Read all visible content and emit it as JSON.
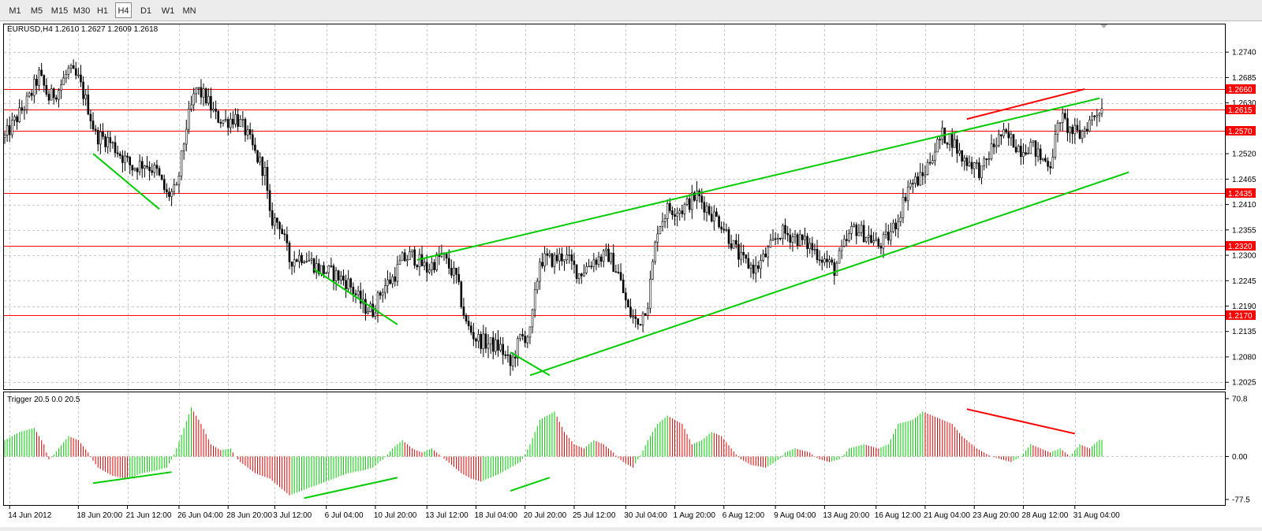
{
  "toolbar": {
    "timeframes": [
      {
        "label": "M1",
        "active": false
      },
      {
        "label": "M5",
        "active": false
      },
      {
        "label": "M15",
        "active": false
      },
      {
        "label": "M30",
        "active": false
      },
      {
        "label": "H1",
        "active": false
      },
      {
        "label": "H4",
        "active": true
      },
      {
        "label": "D1",
        "active": false
      },
      {
        "label": "W1",
        "active": false
      },
      {
        "label": "MN",
        "active": false
      }
    ]
  },
  "colors": {
    "bull_candle": "#ffffff",
    "bear_candle": "#000000",
    "hline": "#ff0000",
    "trendline": "#00cc00",
    "histogram_up": "#00cc00",
    "histogram_down": "#e00000",
    "grid": "#c8c8c8",
    "price_label_bg": "#ff0000"
  },
  "chart_data": [
    {
      "type": "candlestick",
      "title": "EURUSD,H4  1.2610 1.2627 1.2609 1.2618",
      "symbol": "EURUSD",
      "timeframe": "H4",
      "ohlc_last": [
        1.261,
        1.2627,
        1.2609,
        1.2618
      ],
      "ylim": [
        1.201,
        1.28
      ],
      "y_ticks": [
        {
          "value": 1.274,
          "label": "1.2740"
        },
        {
          "value": 1.2685,
          "label": "1.2685"
        },
        {
          "value": 1.263,
          "label": "1.2630"
        },
        {
          "value": 1.252,
          "label": "1.2520"
        },
        {
          "value": 1.2465,
          "label": "1.2465"
        },
        {
          "value": 1.241,
          "label": "1.2410"
        },
        {
          "value": 1.2355,
          "label": "1.2355"
        },
        {
          "value": 1.23,
          "label": "1.2300"
        },
        {
          "value": 1.2245,
          "label": "1.2245"
        },
        {
          "value": 1.219,
          "label": "1.2190"
        },
        {
          "value": 1.2135,
          "label": "1.2135"
        },
        {
          "value": 1.208,
          "label": "1.2080"
        },
        {
          "value": 1.2025,
          "label": "1.2025"
        }
      ],
      "horizontal_levels": [
        {
          "value": 1.266,
          "label": "1.2660"
        },
        {
          "value": 1.2615,
          "label": "1.2615"
        },
        {
          "value": 1.257,
          "label": "1.2570"
        },
        {
          "value": 1.2435,
          "label": "1.2435"
        },
        {
          "value": 1.232,
          "label": "1.2320"
        },
        {
          "value": 1.217,
          "label": "1.2170"
        }
      ],
      "price_path": [
        [
          0,
          1.2555
        ],
        [
          4,
          1.259
        ],
        [
          10,
          1.264
        ],
        [
          14,
          1.269
        ],
        [
          18,
          1.264
        ],
        [
          22,
          1.266
        ],
        [
          26,
          1.27
        ],
        [
          30,
          1.268
        ],
        [
          34,
          1.262
        ],
        [
          37,
          1.256
        ],
        [
          42,
          1.255
        ],
        [
          47,
          1.252
        ],
        [
          52,
          1.249
        ],
        [
          57,
          1.25
        ],
        [
          62,
          1.248
        ],
        [
          66,
          1.243
        ],
        [
          70,
          1.244
        ],
        [
          74,
          1.258
        ],
        [
          78,
          1.266
        ],
        [
          82,
          1.264
        ],
        [
          86,
          1.26
        ],
        [
          90,
          1.259
        ],
        [
          94,
          1.26
        ],
        [
          98,
          1.257
        ],
        [
          102,
          1.252
        ],
        [
          106,
          1.248
        ],
        [
          108,
          1.238
        ],
        [
          112,
          1.237
        ],
        [
          116,
          1.229
        ],
        [
          122,
          1.23
        ],
        [
          128,
          1.227
        ],
        [
          134,
          1.226
        ],
        [
          140,
          1.224
        ],
        [
          146,
          1.219
        ],
        [
          150,
          1.218
        ],
        [
          154,
          1.223
        ],
        [
          158,
          1.225
        ],
        [
          162,
          1.229
        ],
        [
          166,
          1.23
        ],
        [
          172,
          1.227
        ],
        [
          178,
          1.23
        ],
        [
          184,
          1.225
        ],
        [
          188,
          1.215
        ],
        [
          192,
          1.212
        ],
        [
          196,
          1.211
        ],
        [
          202,
          1.21
        ],
        [
          206,
          1.206
        ],
        [
          210,
          1.212
        ],
        [
          214,
          1.213
        ],
        [
          218,
          1.229
        ],
        [
          224,
          1.229
        ],
        [
          228,
          1.23
        ],
        [
          234,
          1.226
        ],
        [
          240,
          1.229
        ],
        [
          246,
          1.23
        ],
        [
          250,
          1.226
        ],
        [
          254,
          1.218
        ],
        [
          258,
          1.215
        ],
        [
          262,
          1.22
        ],
        [
          266,
          1.236
        ],
        [
          270,
          1.24
        ],
        [
          276,
          1.24
        ],
        [
          282,
          1.243
        ],
        [
          288,
          1.239
        ],
        [
          292,
          1.237
        ],
        [
          296,
          1.233
        ],
        [
          300,
          1.229
        ],
        [
          306,
          1.227
        ],
        [
          310,
          1.23
        ],
        [
          316,
          1.235
        ],
        [
          322,
          1.234
        ],
        [
          328,
          1.232
        ],
        [
          334,
          1.229
        ],
        [
          338,
          1.227
        ],
        [
          342,
          1.232
        ],
        [
          346,
          1.236
        ],
        [
          352,
          1.234
        ],
        [
          356,
          1.232
        ],
        [
          360,
          1.234
        ],
        [
          364,
          1.238
        ],
        [
          368,
          1.245
        ],
        [
          374,
          1.247
        ],
        [
          378,
          1.252
        ],
        [
          382,
          1.256
        ],
        [
          386,
          1.255
        ],
        [
          390,
          1.251
        ],
        [
          394,
          1.25
        ],
        [
          398,
          1.248
        ],
        [
          402,
          1.253
        ],
        [
          406,
          1.256
        ],
        [
          410,
          1.255
        ],
        [
          414,
          1.253
        ],
        [
          418,
          1.254
        ],
        [
          422,
          1.251
        ],
        [
          426,
          1.25
        ],
        [
          430,
          1.26
        ],
        [
          434,
          1.257
        ],
        [
          438,
          1.256
        ],
        [
          442,
          1.259
        ],
        [
          446,
          1.2618
        ]
      ],
      "trendlines_green": [
        [
          {
            "bar": 36,
            "price": 1.252
          },
          {
            "bar": 63,
            "price": 1.24
          }
        ],
        [
          {
            "bar": 126,
            "price": 1.227
          },
          {
            "bar": 160,
            "price": 1.215
          }
        ],
        [
          {
            "bar": 168,
            "price": 1.229
          },
          {
            "bar": 446,
            "price": 1.264
          }
        ],
        [
          {
            "bar": 214,
            "price": 1.204
          },
          {
            "bar": 458,
            "price": 1.248
          }
        ],
        [
          {
            "bar": 206,
            "price": 1.209
          },
          {
            "bar": 222,
            "price": 1.204
          }
        ]
      ],
      "trendlines_red": [
        [
          {
            "bar": 392,
            "price": 1.2595
          },
          {
            "bar": 440,
            "price": 1.266
          }
        ]
      ],
      "x_tick_labels": [
        {
          "bar": 2,
          "label": "14 Jun 2012"
        },
        {
          "bar": 30,
          "label": "18 Jun 20:00"
        },
        {
          "bar": 50,
          "label": "21 Jun 12:00"
        },
        {
          "bar": 71,
          "label": "26 Jun 04:00"
        },
        {
          "bar": 91,
          "label": "28 Jun 20:00"
        },
        {
          "bar": 110,
          "label": "3 Jul 12:00"
        },
        {
          "bar": 131,
          "label": "6 Jul 04:00"
        },
        {
          "bar": 151,
          "label": "10 Jul 20:00"
        },
        {
          "bar": 172,
          "label": "13 Jul 12:00"
        },
        {
          "bar": 192,
          "label": "18 Jul 04:00"
        },
        {
          "bar": 212,
          "label": "20 Jul 20:00"
        },
        {
          "bar": 232,
          "label": "25 Jul 12:00"
        },
        {
          "bar": 253,
          "label": "30 Jul 04:00"
        },
        {
          "bar": 273,
          "label": "1 Aug 20:00"
        },
        {
          "bar": 293,
          "label": "6 Aug 12:00"
        },
        {
          "bar": 314,
          "label": "9 Aug 04:00"
        },
        {
          "bar": 334,
          "label": "13 Aug 20:00"
        },
        {
          "bar": 355,
          "label": "16 Aug 12:00"
        },
        {
          "bar": 375,
          "label": "21 Aug 04:00"
        },
        {
          "bar": 395,
          "label": "23 Aug 20:00"
        },
        {
          "bar": 415,
          "label": "28 Aug 12:00"
        },
        {
          "bar": 436,
          "label": "31 Aug 04:00"
        }
      ],
      "bar_count": 448
    },
    {
      "type": "histogram",
      "title": "Trigger 20.5 0.0 20.5",
      "ylim": [
        -77.5,
        70.8
      ],
      "y_ticks": [
        {
          "value": 70.8,
          "label": "70.8"
        },
        {
          "value": 0.0,
          "label": "0.00"
        },
        {
          "value": -77.5,
          "label": "-77.5"
        }
      ],
      "series": [
        {
          "name": "Trigger",
          "path": [
            [
              0,
              20
            ],
            [
              6,
              30
            ],
            [
              12,
              35
            ],
            [
              16,
              15
            ],
            [
              18,
              -5
            ],
            [
              22,
              10
            ],
            [
              26,
              25
            ],
            [
              30,
              20
            ],
            [
              34,
              5
            ],
            [
              38,
              -20
            ],
            [
              44,
              -35
            ],
            [
              50,
              -40
            ],
            [
              56,
              -30
            ],
            [
              62,
              -25
            ],
            [
              66,
              -20
            ],
            [
              70,
              10
            ],
            [
              76,
              60
            ],
            [
              80,
              40
            ],
            [
              84,
              15
            ],
            [
              88,
              8
            ],
            [
              92,
              10
            ],
            [
              96,
              -10
            ],
            [
              102,
              -30
            ],
            [
              108,
              -40
            ],
            [
              112,
              -55
            ],
            [
              116,
              -70
            ],
            [
              122,
              -60
            ],
            [
              128,
              -50
            ],
            [
              134,
              -40
            ],
            [
              140,
              -30
            ],
            [
              146,
              -25
            ],
            [
              150,
              -20
            ],
            [
              154,
              -5
            ],
            [
              158,
              10
            ],
            [
              162,
              20
            ],
            [
              166,
              10
            ],
            [
              170,
              5
            ],
            [
              174,
              10
            ],
            [
              178,
              0
            ],
            [
              182,
              -15
            ],
            [
              186,
              -30
            ],
            [
              190,
              -40
            ],
            [
              194,
              -45
            ],
            [
              198,
              -38
            ],
            [
              202,
              -30
            ],
            [
              206,
              -20
            ],
            [
              210,
              -10
            ],
            [
              214,
              15
            ],
            [
              218,
              45
            ],
            [
              224,
              55
            ],
            [
              228,
              30
            ],
            [
              232,
              15
            ],
            [
              236,
              10
            ],
            [
              240,
              20
            ],
            [
              244,
              15
            ],
            [
              248,
              5
            ],
            [
              252,
              -10
            ],
            [
              256,
              -20
            ],
            [
              258,
              -5
            ],
            [
              262,
              20
            ],
            [
              266,
              40
            ],
            [
              270,
              50
            ],
            [
              276,
              40
            ],
            [
              280,
              15
            ],
            [
              284,
              20
            ],
            [
              288,
              30
            ],
            [
              292,
              25
            ],
            [
              296,
              10
            ],
            [
              300,
              -5
            ],
            [
              304,
              -15
            ],
            [
              310,
              -20
            ],
            [
              314,
              -10
            ],
            [
              318,
              5
            ],
            [
              322,
              10
            ],
            [
              328,
              5
            ],
            [
              332,
              -5
            ],
            [
              336,
              -10
            ],
            [
              340,
              -5
            ],
            [
              344,
              10
            ],
            [
              350,
              15
            ],
            [
              356,
              10
            ],
            [
              360,
              15
            ],
            [
              364,
              40
            ],
            [
              370,
              45
            ],
            [
              374,
              55
            ],
            [
              378,
              50
            ],
            [
              382,
              45
            ],
            [
              386,
              40
            ],
            [
              390,
              25
            ],
            [
              396,
              10
            ],
            [
              402,
              0
            ],
            [
              406,
              -5
            ],
            [
              410,
              -10
            ],
            [
              414,
              0
            ],
            [
              418,
              15
            ],
            [
              422,
              10
            ],
            [
              426,
              5
            ],
            [
              430,
              10
            ],
            [
              434,
              0
            ],
            [
              438,
              15
            ],
            [
              442,
              10
            ],
            [
              446,
              20.5
            ]
          ]
        }
      ],
      "trendlines_green": [
        [
          {
            "bar": 36,
            "value": -48
          },
          {
            "bar": 68,
            "value": -28
          }
        ],
        [
          {
            "bar": 122,
            "value": -75
          },
          {
            "bar": 160,
            "value": -38
          }
        ],
        [
          {
            "bar": 206,
            "value": -62
          },
          {
            "bar": 222,
            "value": -38
          }
        ]
      ],
      "trendlines_red": [
        [
          {
            "bar": 392,
            "value": 58
          },
          {
            "bar": 436,
            "value": 28
          }
        ]
      ]
    }
  ]
}
